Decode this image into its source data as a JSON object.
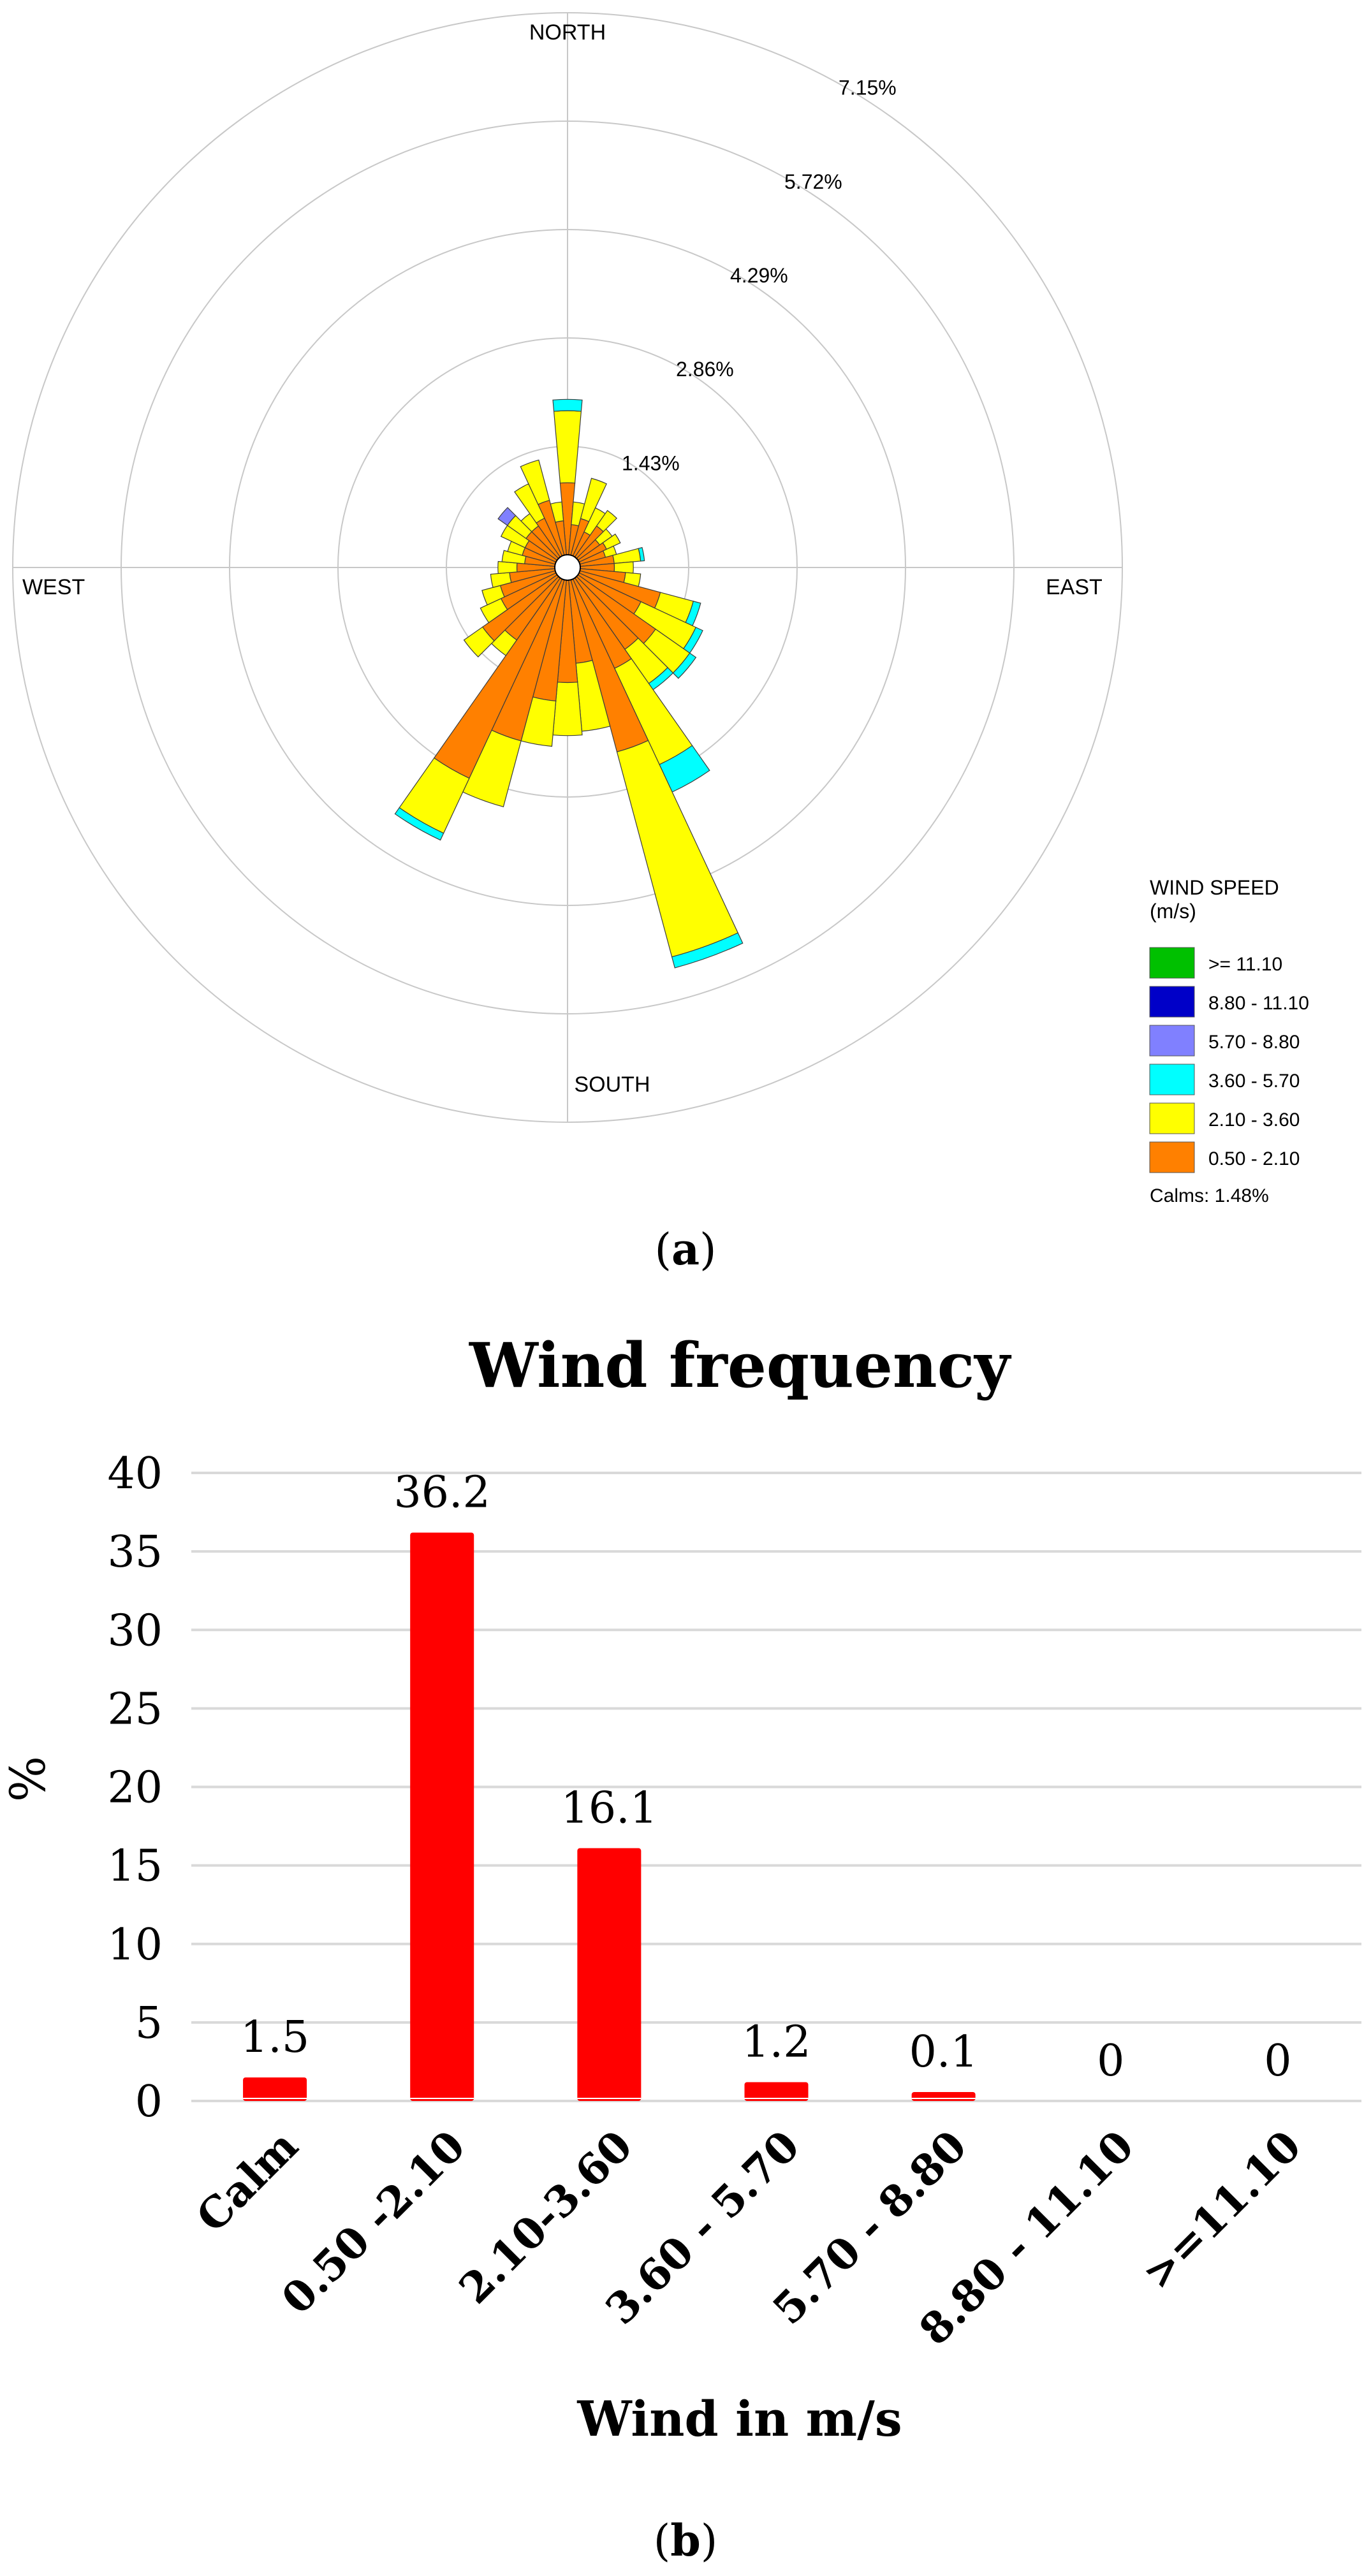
{
  "figure": {
    "caption_a": {
      "open": "(",
      "letter": "a",
      "close": ")"
    },
    "caption_b": {
      "open": "(",
      "letter": "b",
      "close": ")"
    }
  },
  "chart_data": [
    {
      "type": "wind-rose",
      "compass_labels": {
        "north": "NORTH",
        "east": "EAST",
        "south": "SOUTH",
        "west": "WEST"
      },
      "ring_labels": [
        "1.43%",
        "2.86%",
        "4.29%",
        "5.72%",
        "7.15%"
      ],
      "ring_values": [
        1.43,
        2.86,
        4.29,
        5.72,
        7.15
      ],
      "direction_step_deg": 10,
      "legend": {
        "title_line1": "WIND SPEED",
        "title_line2": "(m/s)",
        "entries": [
          {
            "label": ">= 11.10",
            "color": "#00c000"
          },
          {
            "label": "8.80 - 11.10",
            "color": "#0000c8"
          },
          {
            "label": "5.70 - 8.80",
            "color": "#8080ff"
          },
          {
            "label": "3.60 - 5.70",
            "color": "#00ffff"
          },
          {
            "label": "2.10 - 3.60",
            "color": "#ffff00"
          },
          {
            "label": "0.50 - 2.10",
            "color": "#ff8000"
          }
        ],
        "calms": "Calms: 1.48%"
      },
      "series_order": [
        "0.50 - 2.10",
        "2.10 - 3.60",
        "3.60 - 5.70",
        "5.70 - 8.80"
      ],
      "sectors": [
        {
          "dir": 0,
          "values": [
            0.95,
            0.95,
            0.15,
            0
          ]
        },
        {
          "dir": 10,
          "values": [
            0.4,
            0.3,
            0,
            0
          ]
        },
        {
          "dir": 20,
          "values": [
            0.5,
            0.55,
            0,
            0
          ]
        },
        {
          "dir": 30,
          "values": [
            0.35,
            0.35,
            0,
            0
          ]
        },
        {
          "dir": 40,
          "values": [
            0.5,
            0.25,
            0,
            0
          ]
        },
        {
          "dir": 50,
          "values": [
            0.35,
            0.2,
            0,
            0
          ]
        },
        {
          "dir": 60,
          "values": [
            0.4,
            0.2,
            0,
            0
          ]
        },
        {
          "dir": 70,
          "values": [
            0.35,
            0.15,
            0,
            0
          ]
        },
        {
          "dir": 80,
          "values": [
            0.45,
            0.35,
            0.05,
            0
          ]
        },
        {
          "dir": 90,
          "values": [
            0.45,
            0.25,
            0,
            0
          ]
        },
        {
          "dir": 100,
          "values": [
            0.6,
            0.2,
            0,
            0
          ]
        },
        {
          "dir": 110,
          "values": [
            1.1,
            0.45,
            0.1,
            0
          ]
        },
        {
          "dir": 120,
          "values": [
            0.9,
            0.8,
            0.1,
            0
          ]
        },
        {
          "dir": 130,
          "values": [
            1.25,
            0.55,
            0.1,
            0
          ]
        },
        {
          "dir": 140,
          "values": [
            1.15,
            0.55,
            0.1,
            0
          ]
        },
        {
          "dir": 150,
          "values": [
            1.3,
            1.4,
            0.4,
            0
          ]
        },
        {
          "dir": 160,
          "values": [
            2.35,
            2.8,
            0.15,
            0
          ]
        },
        {
          "dir": 170,
          "values": [
            1.1,
            0.9,
            0,
            0
          ]
        },
        {
          "dir": 180,
          "values": [
            1.35,
            0.7,
            0,
            0
          ]
        },
        {
          "dir": 190,
          "values": [
            1.6,
            0.6,
            0,
            0
          ]
        },
        {
          "dir": 200,
          "values": [
            2.2,
            0.9,
            0,
            0
          ]
        },
        {
          "dir": 210,
          "values": [
            2.9,
            0.8,
            0.1,
            0
          ]
        },
        {
          "dir": 220,
          "values": [
            1.0,
            0.25,
            0,
            0
          ]
        },
        {
          "dir": 230,
          "values": [
            1.2,
            0.3,
            0,
            0
          ]
        },
        {
          "dir": 240,
          "values": [
            0.8,
            0.3,
            0,
            0
          ]
        },
        {
          "dir": 250,
          "values": [
            0.75,
            0.25,
            0,
            0
          ]
        },
        {
          "dir": 260,
          "values": [
            0.6,
            0.25,
            0,
            0
          ]
        },
        {
          "dir": 270,
          "values": [
            0.5,
            0.25,
            0,
            0
          ]
        },
        {
          "dir": 280,
          "values": [
            0.4,
            0.3,
            0,
            0
          ]
        },
        {
          "dir": 290,
          "values": [
            0.45,
            0.2,
            0,
            0
          ]
        },
        {
          "dir": 300,
          "values": [
            0.45,
            0.35,
            0,
            0
          ]
        },
        {
          "dir": 310,
          "values": [
            0.5,
            0.3,
            0,
            0.15
          ]
        },
        {
          "dir": 320,
          "values": [
            0.5,
            0.2,
            0,
            0
          ]
        },
        {
          "dir": 330,
          "values": [
            0.55,
            0.5,
            0,
            0
          ]
        },
        {
          "dir": 340,
          "values": [
            0.75,
            0.55,
            0,
            0
          ]
        },
        {
          "dir": 350,
          "values": [
            0.45,
            0.25,
            0,
            0
          ]
        }
      ]
    },
    {
      "type": "bar",
      "title": "Wind frequency",
      "xlabel": "Wind in m/s",
      "ylabel": "%",
      "ylim": [
        0,
        40
      ],
      "yticks": [
        0,
        5,
        10,
        15,
        20,
        25,
        30,
        35,
        40
      ],
      "grid": true,
      "bar_color": "#ff0000",
      "categories": [
        "Calm",
        "0.50 -2.10",
        "2.10-3.60",
        "3.60 - 5.70",
        "5.70 - 8.80",
        "8.80 - 11.10",
        ">=11.10"
      ],
      "values": [
        1.5,
        36.2,
        16.1,
        1.2,
        0.1,
        0,
        0
      ],
      "data_labels": [
        "1.5",
        "36.2",
        "16.1",
        "1.2",
        "0.1",
        "0",
        "0"
      ]
    }
  ]
}
